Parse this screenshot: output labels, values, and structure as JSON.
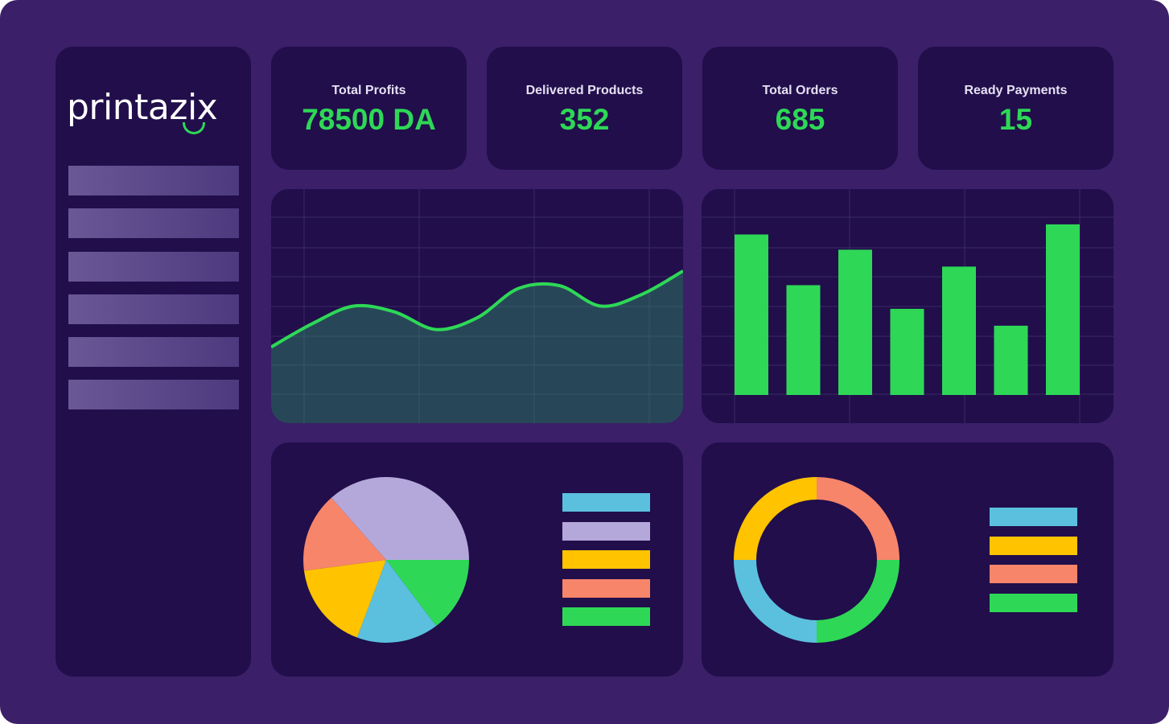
{
  "brand": {
    "logo_text": "printazix",
    "accent": "#2ed856",
    "background": "#3b1f68",
    "panel": "#210e4b"
  },
  "sidebar": {
    "items": [
      {
        "label": ""
      },
      {
        "label": ""
      },
      {
        "label": ""
      },
      {
        "label": ""
      },
      {
        "label": ""
      },
      {
        "label": ""
      }
    ]
  },
  "kpis": [
    {
      "label": "Total Profits",
      "value": "78500 DA"
    },
    {
      "label": "Delivered Products",
      "value": "352"
    },
    {
      "label": "Total Orders",
      "value": "685"
    },
    {
      "label": "Ready Payments",
      "value": "15"
    }
  ],
  "charts": {
    "chart_data": [
      {
        "type": "area",
        "x": [
          0,
          1,
          2,
          3,
          4,
          5,
          6,
          7,
          8,
          9,
          10
        ],
        "values": [
          26,
          34,
          40,
          38,
          32,
          36,
          46,
          47,
          40,
          44,
          52
        ],
        "ylim": [
          0,
          80
        ],
        "grid": true,
        "color": "#2ed856"
      },
      {
        "type": "bar",
        "values": [
          95,
          65,
          86,
          51,
          76,
          41,
          101
        ],
        "ylim": [
          0,
          110
        ],
        "grid": true,
        "color": "#2ed856"
      },
      {
        "type": "pie",
        "values": [
          36.5,
          14.7,
          16.0,
          17.2,
          15.6
        ],
        "colors": [
          "#b4a8da",
          "#2ed856",
          "#5bc0de",
          "#ffc300",
          "#f7856a"
        ]
      },
      {
        "type": "donut",
        "values": [
          25,
          25,
          25,
          25
        ],
        "colors": [
          "#f7856a",
          "#2ed856",
          "#5bc0de",
          "#ffc300"
        ]
      }
    ]
  },
  "legends": {
    "pie": [
      "#5bc0de",
      "#b4a8da",
      "#ffc300",
      "#f7856a",
      "#2ed856"
    ],
    "donut": [
      "#5bc0de",
      "#ffc300",
      "#f7856a",
      "#2ed856"
    ]
  }
}
